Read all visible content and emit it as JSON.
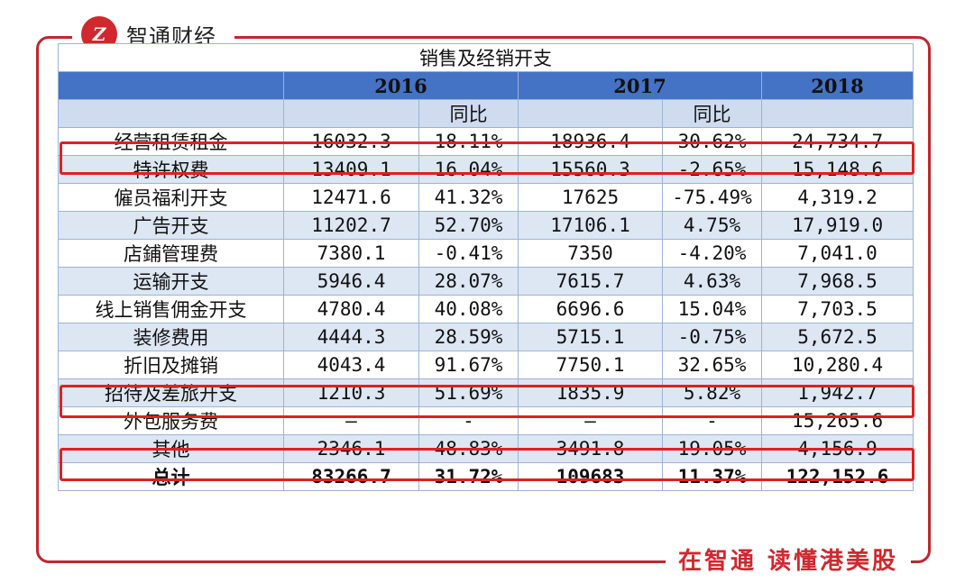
{
  "brand": {
    "logo_text": "Z",
    "name": "智通财经"
  },
  "slogan": "在智通 读懂港美股",
  "watermark": "智通财经",
  "table": {
    "title": "销售及经销开支",
    "years": [
      "2016",
      "2017",
      "2018"
    ],
    "yoy_label": "同比",
    "rows": [
      {
        "label": "经营租赁租金",
        "v2016": "16032.3",
        "yoy2017": "18.11%",
        "v2017": "18936.4",
        "yoy2018": "30.62%",
        "v2018": "24,734.7"
      },
      {
        "label": "特许权费",
        "v2016": "13409.1",
        "yoy2017": "16.04%",
        "v2017": "15560.3",
        "yoy2018": "-2.65%",
        "v2018": "15,148.6"
      },
      {
        "label": "僱员福利开支",
        "v2016": "12471.6",
        "yoy2017": "41.32%",
        "v2017": "17625",
        "yoy2018": "-75.49%",
        "v2018": "4,319.2"
      },
      {
        "label": "广告开支",
        "v2016": "11202.7",
        "yoy2017": "52.70%",
        "v2017": "17106.1",
        "yoy2018": "4.75%",
        "v2018": "17,919.0"
      },
      {
        "label": "店鋪管理费",
        "v2016": "7380.1",
        "yoy2017": "-0.41%",
        "v2017": "7350",
        "yoy2018": "-4.20%",
        "v2018": "7,041.0"
      },
      {
        "label": "运输开支",
        "v2016": "5946.4",
        "yoy2017": "28.07%",
        "v2017": "7615.7",
        "yoy2018": "4.63%",
        "v2018": "7,968.5"
      },
      {
        "label": "线上销售佣金开支",
        "v2016": "4780.4",
        "yoy2017": "40.08%",
        "v2017": "6696.6",
        "yoy2018": "15.04%",
        "v2018": "7,703.5"
      },
      {
        "label": "装修费用",
        "v2016": "4444.3",
        "yoy2017": "28.59%",
        "v2017": "5715.1",
        "yoy2018": "-0.75%",
        "v2018": "5,672.5"
      },
      {
        "label": "折旧及摊销",
        "v2016": "4043.4",
        "yoy2017": "91.67%",
        "v2017": "7750.1",
        "yoy2018": "32.65%",
        "v2018": "10,280.4"
      },
      {
        "label": "招待及差旅开支",
        "v2016": "1210.3",
        "yoy2017": "51.69%",
        "v2017": "1835.9",
        "yoy2018": "5.82%",
        "v2018": "1,942.7"
      },
      {
        "label": "外包服务费",
        "v2016": "—",
        "yoy2017": "-",
        "v2017": "—",
        "yoy2018": "-",
        "v2018": "15,265.6"
      },
      {
        "label": "其他",
        "v2016": "2346.1",
        "yoy2017": "48.83%",
        "v2017": "3491.8",
        "yoy2018": "19.05%",
        "v2018": "4,156.9"
      }
    ],
    "total": {
      "label": "总计",
      "v2016": "83266.7",
      "yoy2017": "31.72%",
      "v2017": "109683",
      "yoy2018": "11.37%",
      "v2018": "122,152.6"
    }
  },
  "highlight_color": "#e02020"
}
